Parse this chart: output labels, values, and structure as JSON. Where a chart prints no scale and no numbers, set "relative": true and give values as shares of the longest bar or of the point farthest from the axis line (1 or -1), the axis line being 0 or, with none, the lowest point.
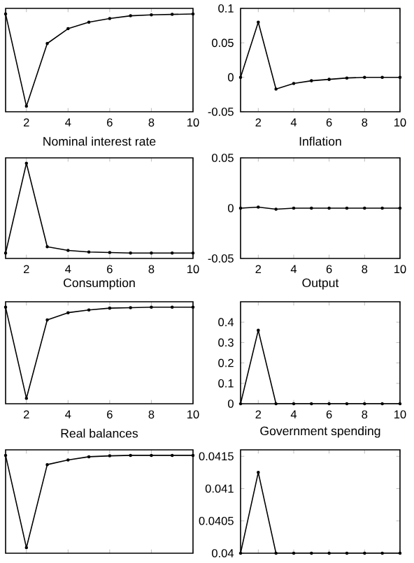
{
  "chart_data": [
    {
      "type": "line",
      "relative": true,
      "x": [
        1,
        2,
        3,
        4,
        5,
        6,
        7,
        8,
        9,
        10
      ],
      "values": [
        1,
        0,
        0.68,
        0.84,
        0.91,
        0.95,
        0.98,
        0.99,
        0.995,
        1
      ],
      "color": "#000000",
      "marker": "circle",
      "xlim": [
        1,
        10
      ],
      "xticks": [
        2,
        4,
        6,
        8,
        10
      ],
      "tick_labels": "x"
    },
    {
      "type": "line",
      "x": [
        1,
        2,
        3,
        4,
        5,
        6,
        7,
        8,
        9,
        10
      ],
      "values": [
        0,
        0.08,
        -0.017,
        -0.009,
        -0.005,
        -0.003,
        -0.001,
        0,
        0,
        0
      ],
      "color": "#000000",
      "marker": "circle",
      "xlim": [
        1,
        10
      ],
      "xticks": [
        2,
        4,
        6,
        8,
        10
      ],
      "ylim": [
        -0.05,
        0.1
      ],
      "yticks": [
        -0.05,
        0,
        0.05,
        0.1
      ]
    },
    {
      "type": "line",
      "title": "Nominal interest rate",
      "relative": true,
      "x": [
        1,
        2,
        3,
        4,
        5,
        6,
        7,
        8,
        9,
        10
      ],
      "values": [
        0,
        1,
        0.07,
        0.03,
        0.012,
        0.006,
        0,
        0,
        0,
        0
      ],
      "color": "#000000",
      "marker": "circle",
      "xlim": [
        1,
        10
      ],
      "xticks": [
        2,
        4,
        6,
        8,
        10
      ],
      "tick_labels": "x"
    },
    {
      "type": "line",
      "title": "Inflation",
      "x": [
        1,
        2,
        3,
        4,
        5,
        6,
        7,
        8,
        9,
        10
      ],
      "values": [
        0,
        0.001,
        -0.001,
        0,
        0,
        0,
        0,
        0,
        0,
        0
      ],
      "color": "#000000",
      "marker": "circle",
      "xlim": [
        1,
        10
      ],
      "xticks": [
        2,
        4,
        6,
        8,
        10
      ],
      "ylim": [
        -0.05,
        0.05
      ],
      "yticks": [
        -0.05,
        0,
        0.05
      ]
    },
    {
      "type": "line",
      "title": "Consumption",
      "relative": true,
      "x": [
        1,
        2,
        3,
        4,
        5,
        6,
        7,
        8,
        9,
        10
      ],
      "values": [
        1,
        0,
        0.86,
        0.94,
        0.97,
        0.99,
        0.995,
        1,
        1,
        1
      ],
      "color": "#000000",
      "marker": "circle",
      "xlim": [
        1,
        10
      ],
      "xticks": [
        2,
        4,
        6,
        8,
        10
      ],
      "tick_labels": "x"
    },
    {
      "type": "line",
      "title": "Output",
      "x": [
        1,
        2,
        3,
        4,
        5,
        6,
        7,
        8,
        9,
        10
      ],
      "values": [
        0,
        0.36,
        0,
        0,
        0,
        0,
        0,
        0,
        0,
        0
      ],
      "color": "#000000",
      "marker": "circle",
      "xlim": [
        1,
        10
      ],
      "xticks": [
        2,
        4,
        6,
        8,
        10
      ],
      "ylim": [
        0,
        0.5
      ],
      "yticks": [
        0,
        0.1,
        0.2,
        0.3,
        0.4
      ]
    },
    {
      "type": "line",
      "title": "Real balances",
      "relative": true,
      "x": [
        1,
        2,
        3,
        4,
        5,
        6,
        7,
        8,
        9,
        10
      ],
      "values": [
        1,
        0,
        0.9,
        0.95,
        0.985,
        0.995,
        1,
        1,
        1,
        1
      ],
      "color": "#000000",
      "marker": "circle",
      "xlim": [
        1,
        10
      ],
      "xticks": [
        2,
        4,
        6,
        8,
        10
      ],
      "tick_labels": false
    },
    {
      "type": "line",
      "title": "Government spending",
      "x": [
        1,
        2,
        3,
        4,
        5,
        6,
        7,
        8,
        9,
        10
      ],
      "values": [
        0.04,
        0.04125,
        0.04,
        0.04,
        0.04,
        0.04,
        0.04,
        0.04,
        0.04,
        0.04
      ],
      "color": "#000000",
      "marker": "circle",
      "xlim": [
        1,
        10
      ],
      "xticks": [
        2,
        4,
        6,
        8,
        10
      ],
      "ylim": [
        0.04,
        0.0416
      ],
      "yticks": [
        0.04,
        0.0405,
        0.041,
        0.0415
      ],
      "tick_labels": "y"
    }
  ]
}
